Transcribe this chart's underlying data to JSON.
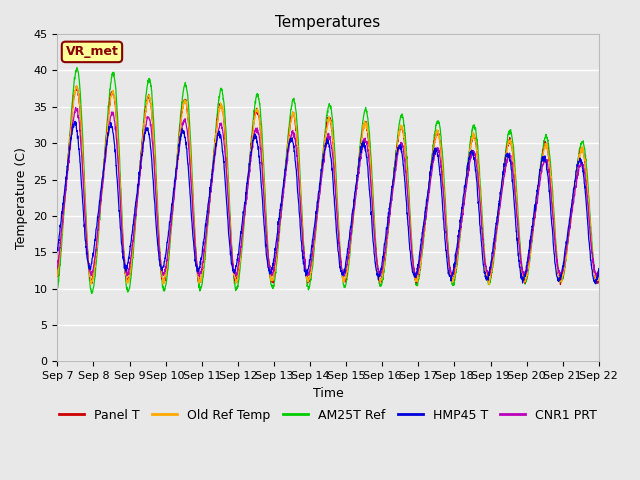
{
  "title": "Temperatures",
  "xlabel": "Time",
  "ylabel": "Temperature (C)",
  "ylim": [
    0,
    45
  ],
  "yticks": [
    0,
    5,
    10,
    15,
    20,
    25,
    30,
    35,
    40,
    45
  ],
  "x_tick_labels": [
    "Sep 7",
    "Sep 8",
    "Sep 9",
    "Sep 10",
    "Sep 11",
    "Sep 12",
    "Sep 13",
    "Sep 14",
    "Sep 15",
    "Sep 16",
    "Sep 17",
    "Sep 18",
    "Sep 19",
    "Sep 20",
    "Sep 21",
    "Sep 22"
  ],
  "legend_labels": [
    "Panel T",
    "Old Ref Temp",
    "AM25T Ref",
    "HMP45 T",
    "CNR1 PRT"
  ],
  "colors": {
    "Panel T": "#cc0000",
    "Old Ref Temp": "#ffaa00",
    "AM25T Ref": "#00cc00",
    "HMP45 T": "#0000dd",
    "CNR1 PRT": "#bb00bb"
  },
  "annotation_text": "VR_met",
  "annotation_color": "#880000",
  "annotation_bg": "#ffff99",
  "bg_color": "#e8e8e8",
  "fig_bg": "#e8e8e8",
  "grid_color": "#ffffff",
  "title_fontsize": 11,
  "label_fontsize": 9,
  "tick_fontsize": 8,
  "legend_fontsize": 9
}
